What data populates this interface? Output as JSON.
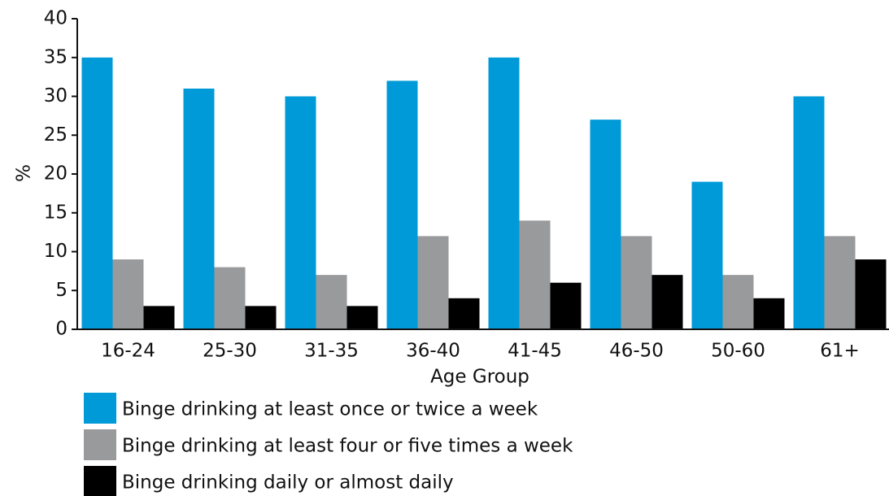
{
  "chart_data": {
    "type": "bar",
    "x_label": "Age Group",
    "y_label": "%",
    "categories": [
      "16-24",
      "25-30",
      "31-35",
      "36-40",
      "41-45",
      "46-50",
      "50-60",
      "61+"
    ],
    "series": [
      {
        "name": "Binge drinking at least once or twice a week",
        "color": "#009ad9",
        "values": [
          35,
          31,
          30,
          32,
          35,
          27,
          19,
          30
        ]
      },
      {
        "name": "Binge drinking at least four or five times a week",
        "color": "#999a9c",
        "values": [
          9,
          8,
          7,
          12,
          14,
          12,
          7,
          12
        ]
      },
      {
        "name": "Binge drinking daily or almost daily",
        "color": "#000000",
        "values": [
          3,
          3,
          3,
          4,
          6,
          7,
          4,
          9
        ]
      }
    ],
    "ylim": [
      0,
      40
    ],
    "yticks": [
      0,
      5,
      10,
      15,
      20,
      25,
      30,
      35,
      40
    ],
    "grid": false,
    "legend": "bottom"
  }
}
